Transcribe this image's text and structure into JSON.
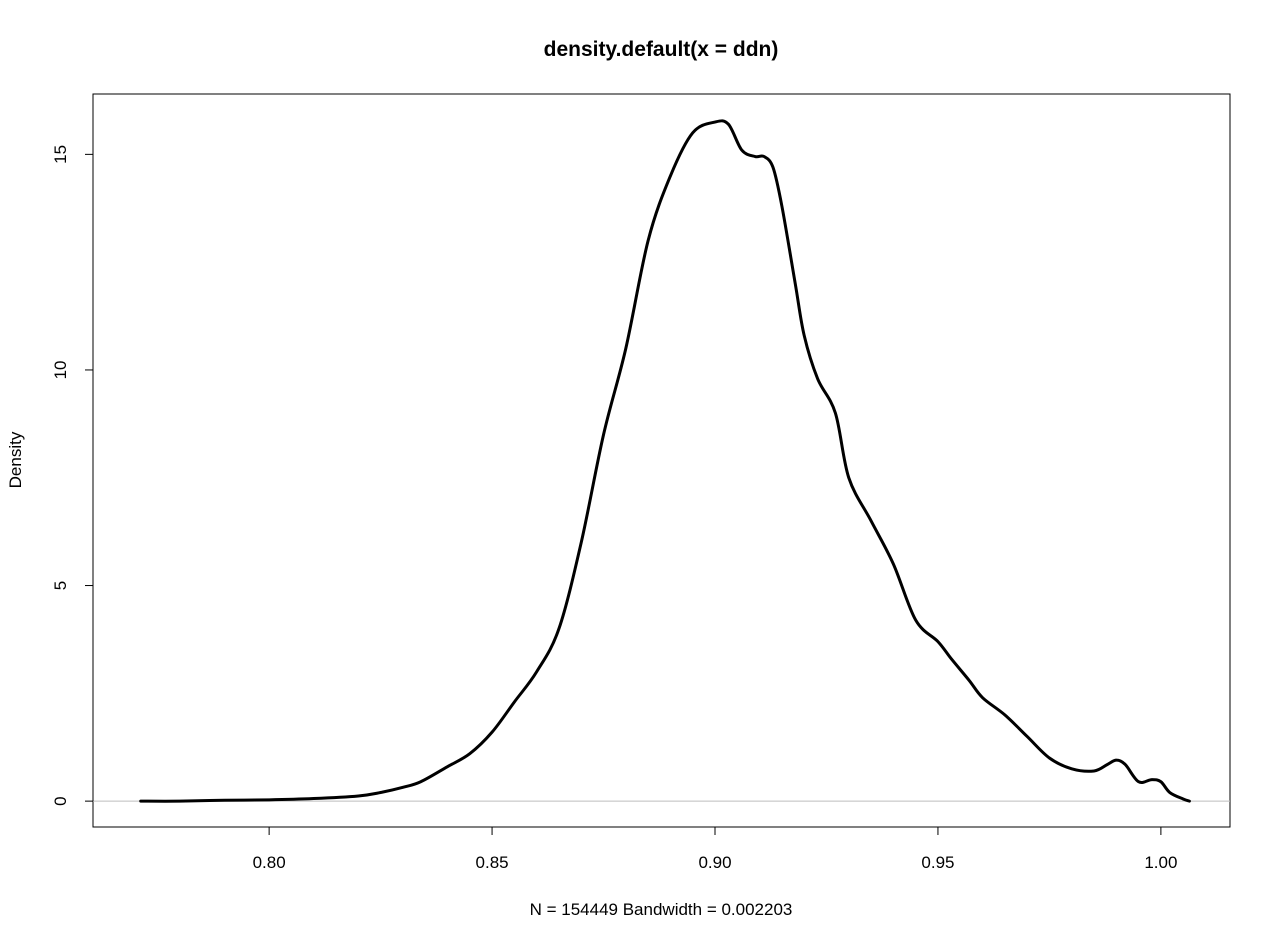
{
  "chart_data": {
    "type": "line",
    "title": "density.default(x = ddn)",
    "xlabel": "N = 154449   Bandwidth = 0.002203",
    "ylabel": "Density",
    "xlim": [
      0.7605,
      1.0155
    ],
    "ylim": [
      -0.6,
      16.4
    ],
    "x_ticks": [
      0.8,
      0.85,
      0.9,
      0.95,
      1.0
    ],
    "x_tick_labels": [
      "0.80",
      "0.85",
      "0.90",
      "0.95",
      "1.00"
    ],
    "y_ticks": [
      0,
      5,
      10,
      15
    ],
    "y_tick_labels": [
      "0",
      "5",
      "10",
      "15"
    ],
    "baseline_y": 0,
    "grid": false,
    "legend": "none",
    "colors": {
      "line": "#000000",
      "baseline": "#bebebe",
      "box": "#000000"
    },
    "series": [
      {
        "x": [
          0.7712,
          0.78,
          0.79,
          0.8,
          0.81,
          0.82,
          0.825,
          0.83,
          0.834,
          0.84,
          0.845,
          0.85,
          0.855,
          0.86,
          0.865,
          0.87,
          0.875,
          0.88,
          0.885,
          0.89,
          0.895,
          0.9,
          0.903,
          0.906,
          0.909,
          0.911,
          0.913,
          0.915,
          0.918,
          0.92,
          0.923,
          0.927,
          0.93,
          0.935,
          0.94,
          0.945,
          0.95,
          0.953,
          0.957,
          0.96,
          0.965,
          0.97,
          0.975,
          0.98,
          0.985,
          0.988,
          0.99,
          0.992,
          0.995,
          0.998,
          1.0,
          1.002,
          1.005,
          1.0064
        ],
        "y": [
          0,
          0,
          0.02,
          0.03,
          0.06,
          0.12,
          0.2,
          0.32,
          0.45,
          0.8,
          1.1,
          1.6,
          2.3,
          3.0,
          4.0,
          6.0,
          8.5,
          10.5,
          13.0,
          14.5,
          15.5,
          15.75,
          15.7,
          15.1,
          14.95,
          14.95,
          14.7,
          13.8,
          12.0,
          10.8,
          9.8,
          9.0,
          7.5,
          6.5,
          5.5,
          4.2,
          3.7,
          3.3,
          2.8,
          2.4,
          2.0,
          1.5,
          1.0,
          0.75,
          0.7,
          0.85,
          0.95,
          0.85,
          0.45,
          0.5,
          0.45,
          0.2,
          0.05,
          0
        ]
      }
    ]
  }
}
